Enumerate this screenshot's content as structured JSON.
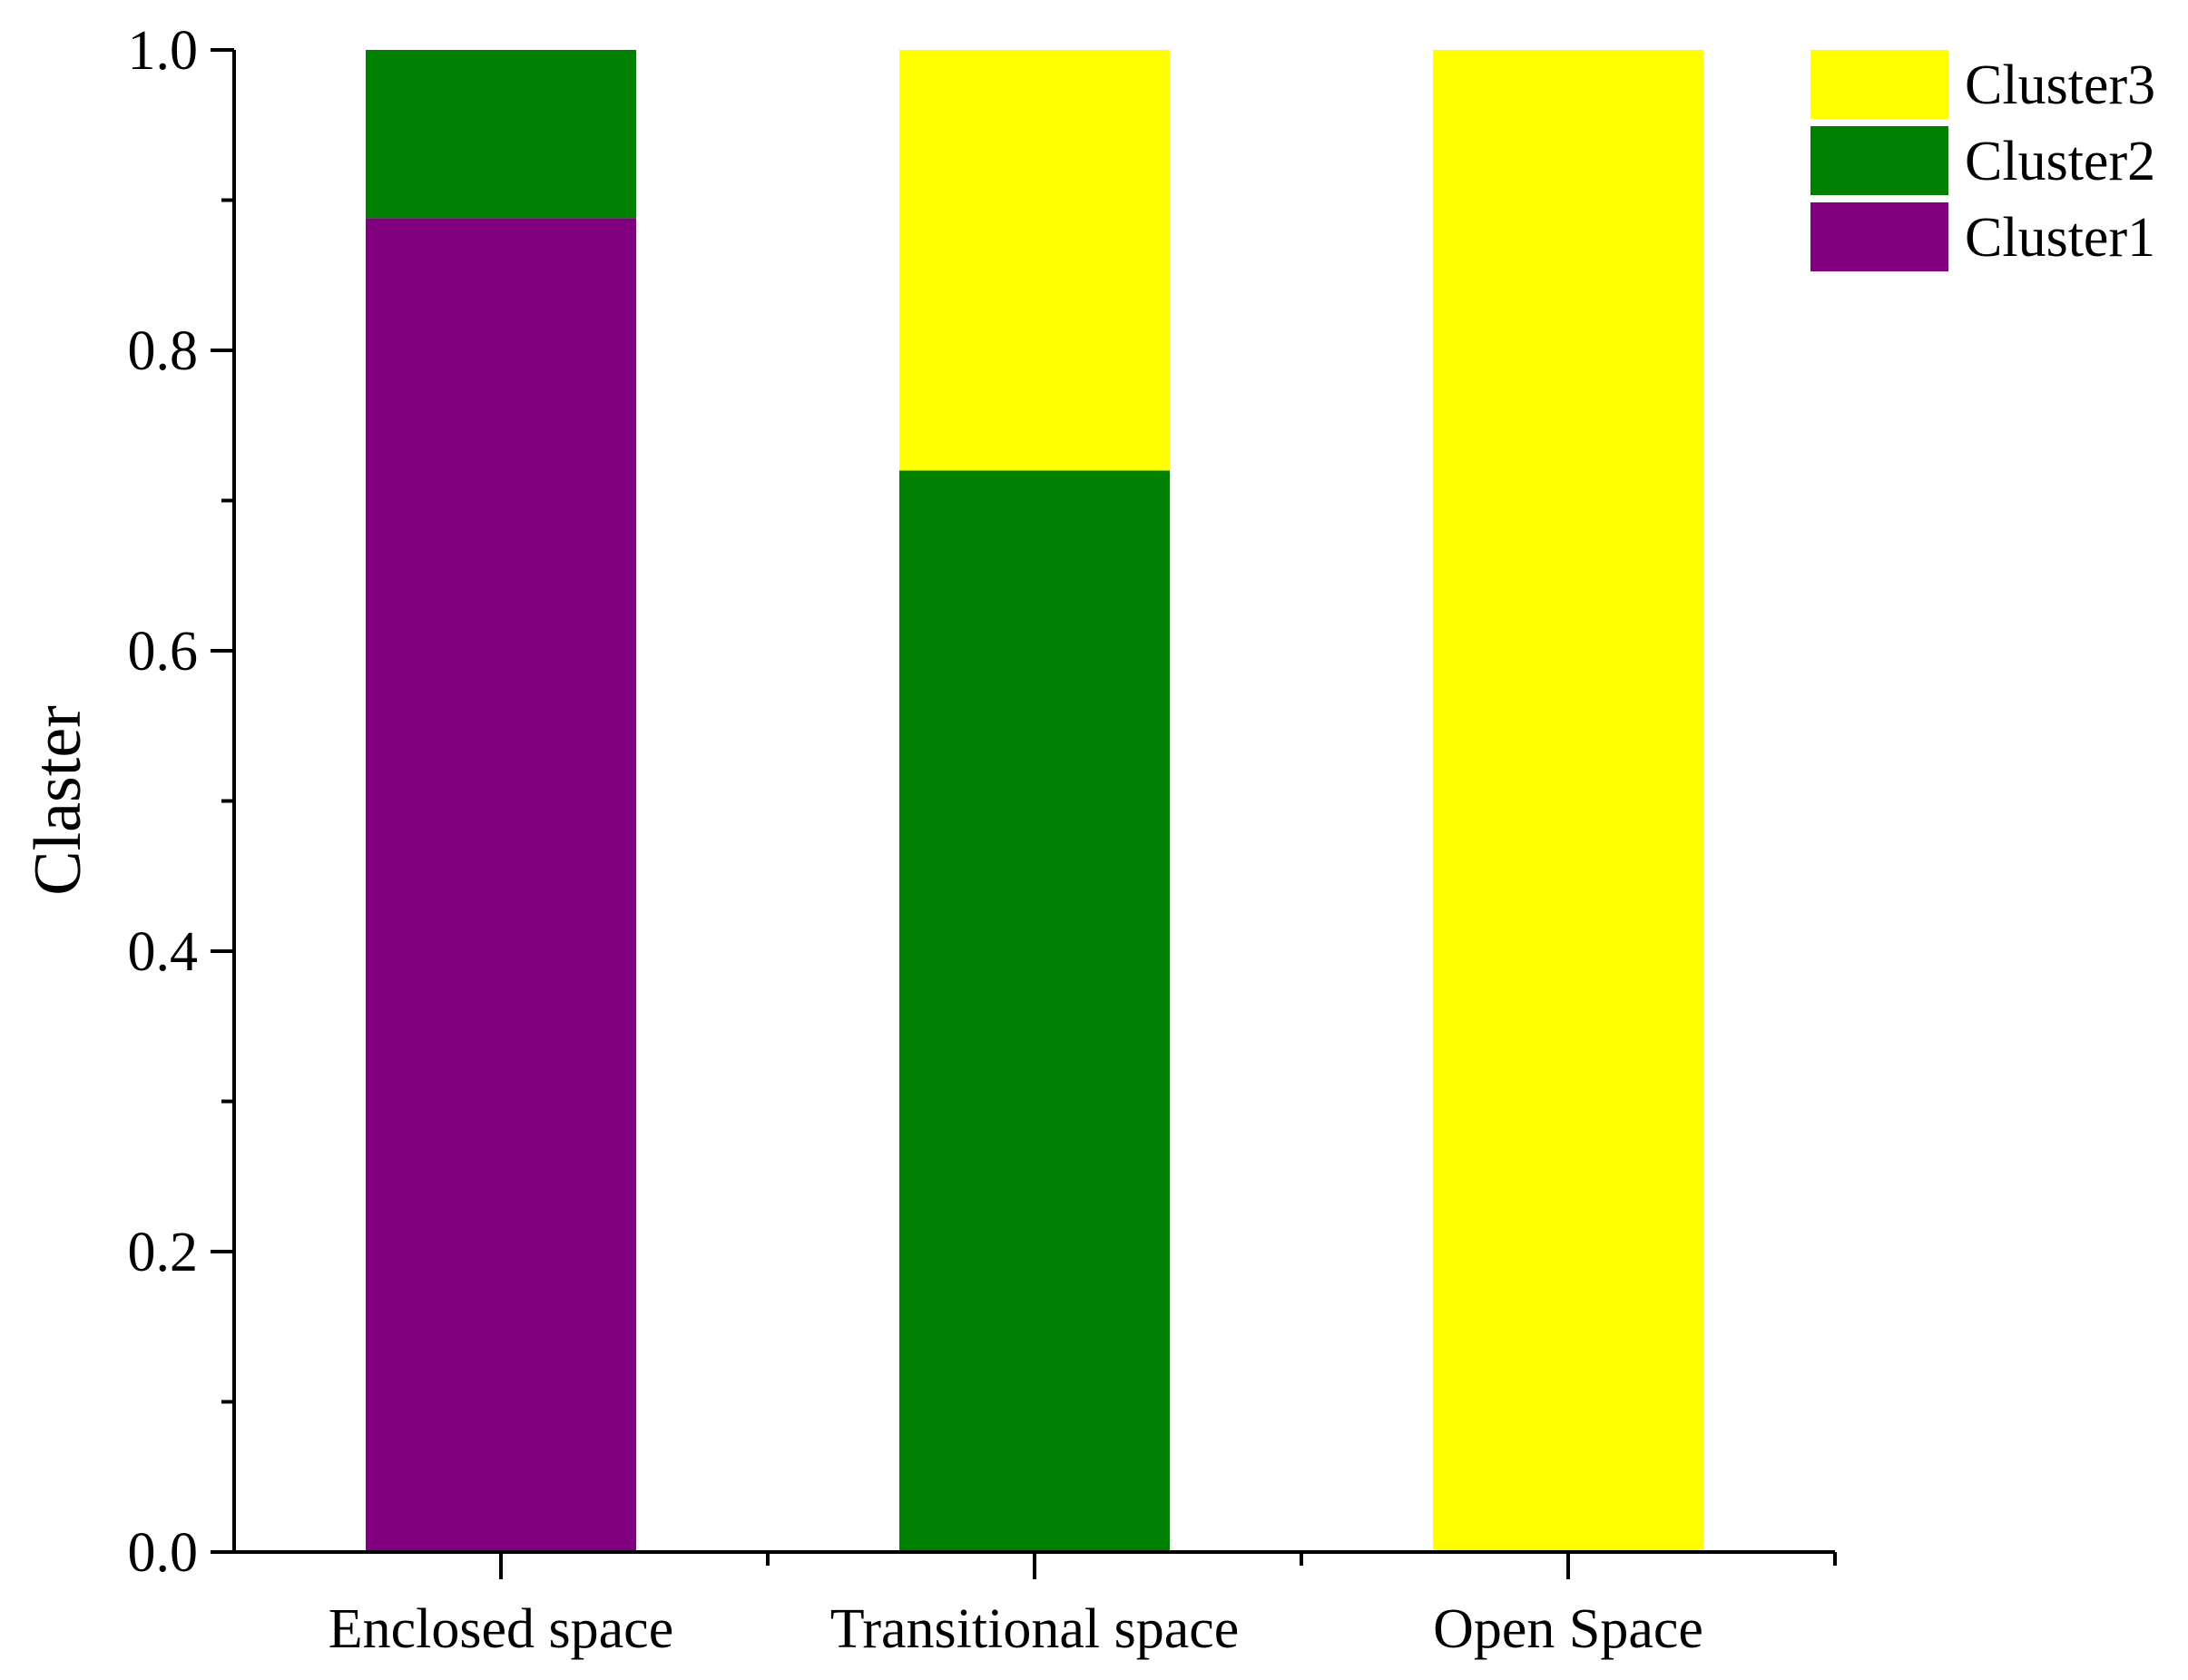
{
  "chart_data": {
    "type": "bar",
    "stacked": true,
    "categories": [
      "Enclosed space",
      "Transitional space",
      "Open Space"
    ],
    "series": [
      {
        "name": "Cluster1",
        "color": "#800080",
        "values": [
          0.888,
          0.0,
          0.0
        ]
      },
      {
        "name": "Cluster2",
        "color": "#008000",
        "values": [
          0.112,
          0.72,
          0.0
        ]
      },
      {
        "name": "Cluster3",
        "color": "#ffff00",
        "values": [
          0.0,
          0.28,
          1.0
        ]
      }
    ],
    "ylabel": "Claster",
    "xlabel": "",
    "ylim": [
      0,
      1.0
    ],
    "yticks": [
      "0.0",
      "0.2",
      "0.4",
      "0.6",
      "0.8",
      "1.0"
    ],
    "grid": false,
    "legend": {
      "placement": "top-right",
      "order": [
        "Cluster3",
        "Cluster2",
        "Cluster1"
      ]
    }
  }
}
